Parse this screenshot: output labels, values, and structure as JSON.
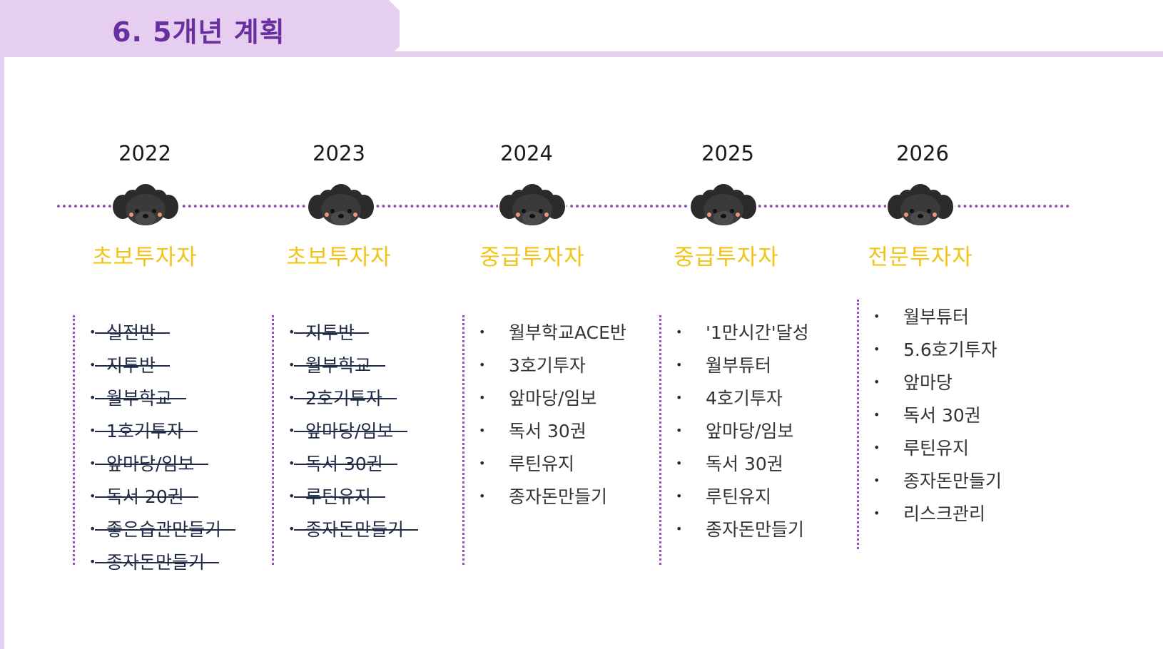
{
  "title": "6. 5개년 계획",
  "colors": {
    "header_band": "#e6cef1",
    "title": "#6a2f9e",
    "timeline_dots": "#9a4fbf",
    "level_text": "#f2c318"
  },
  "icon": "poodle-dog-icon",
  "years": [
    {
      "year": "2022",
      "level": "초보투자자",
      "completed": true,
      "items": [
        "실전반",
        "지투반",
        "월부학교",
        "1호기투자",
        "앞마당/임보",
        "독서 20권",
        "좋은습관만들기",
        "종자돈만들기"
      ]
    },
    {
      "year": "2023",
      "level": "초보투자자",
      "completed": true,
      "items": [
        "지투반",
        "월부학교",
        "2호기투자",
        "앞마당/임보",
        "독서 30권",
        "루틴유지",
        "종자돈만들기"
      ]
    },
    {
      "year": "2024",
      "level": "중급투자자",
      "completed": false,
      "items": [
        "월부학교ACE반",
        "3호기투자",
        "앞마당/임보",
        "독서 30권",
        "루틴유지",
        "종자돈만들기"
      ]
    },
    {
      "year": "2025",
      "level": "중급투자자",
      "completed": false,
      "items": [
        "'1만시간'달성",
        "월부튜터",
        "4호기투자",
        "앞마당/임보",
        "독서 30권",
        "루틴유지",
        "종자돈만들기"
      ]
    },
    {
      "year": "2026",
      "level": "전문투자자",
      "completed": false,
      "items": [
        "월부튜터",
        "5.6호기투자",
        "앞마당",
        "독서 30권",
        "루틴유지",
        "종자돈만들기",
        "리스크관리"
      ]
    }
  ]
}
